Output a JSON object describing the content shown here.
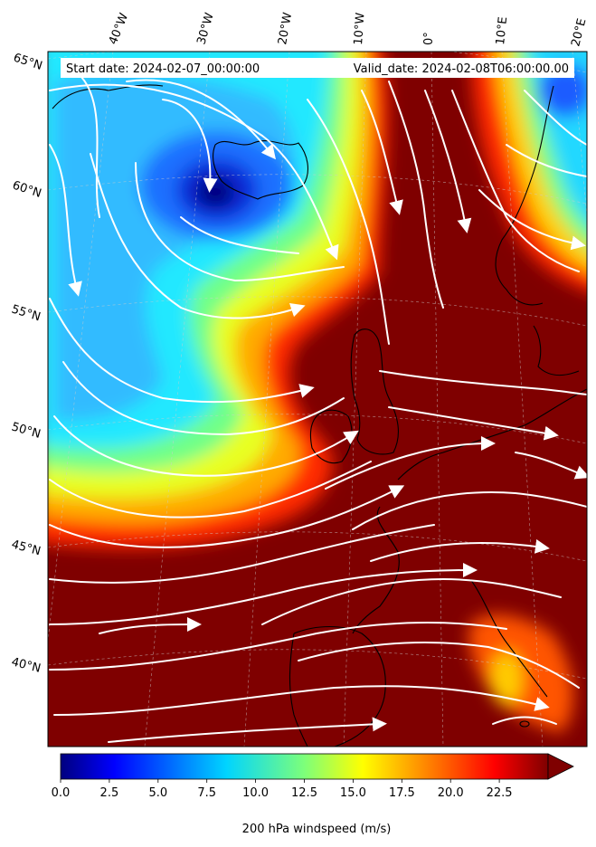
{
  "header": {
    "start_date": "Start date: 2024-02-07_00:00:00",
    "valid_date": "Valid_date: 2024-02-08T06:00:00.00"
  },
  "map": {
    "lon_labels": [
      "40°W",
      "30°W",
      "20°W",
      "10°W",
      "0°",
      "10°E",
      "20°E"
    ],
    "lat_labels": [
      "65°N",
      "60°N",
      "55°N",
      "50°N",
      "45°N",
      "40°N"
    ],
    "coastline_color": "#000000",
    "streamline_color": "#ffffff",
    "gridline_style": "dashed"
  },
  "colorbar": {
    "title": "200 hPa windspeed (m/s)",
    "ticks": [
      "0.0",
      "2.5",
      "5.0",
      "7.5",
      "10.0",
      "12.5",
      "15.0",
      "17.5",
      "20.0",
      "22.5"
    ],
    "tick_values": [
      0.0,
      2.5,
      5.0,
      7.5,
      10.0,
      12.5,
      15.0,
      17.5,
      20.0,
      22.5
    ],
    "vmin": 0.0,
    "vmax": 25.0,
    "extend": "max",
    "colormap": "jet",
    "jet_stops": [
      "#00007f",
      "#0000ff",
      "#007fff",
      "#00ffff",
      "#7fff7f",
      "#ffff00",
      "#ff7f00",
      "#ff0000",
      "#7f0000"
    ]
  }
}
